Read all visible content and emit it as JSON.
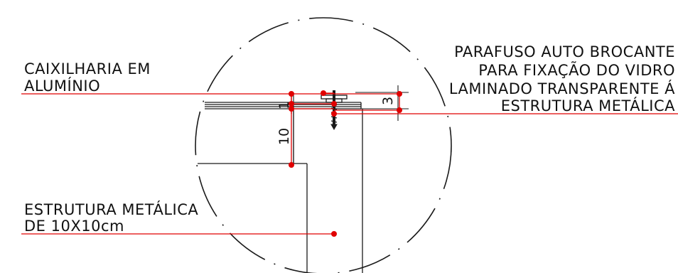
{
  "colors": {
    "line": "#1a1a1a",
    "leader": "#e00000",
    "background": "#ffffff"
  },
  "labels": {
    "caixilharia_line1": "CAIXILHARIA EM",
    "caixilharia_line2": "ALUMÍNIO",
    "estrutura_line1": "ESTRUTURA METÁLICA",
    "estrutura_line2": "DE 10X10cm",
    "parafuso_line1": "PARAFUSO AUTO BROCANTE",
    "parafuso_line2": "PARA FIXAÇÃO DO VIDRO",
    "parafuso_line3": "LAMINADO TRANSPARENTE Á",
    "parafuso_line4": "ESTRUTURA METÁLICA"
  },
  "dimensions": {
    "glass": "1",
    "screw_head": "3",
    "profile": "10"
  },
  "icons": [
    "detail-circle",
    "self-drilling-screw-icon",
    "leader-dot"
  ]
}
